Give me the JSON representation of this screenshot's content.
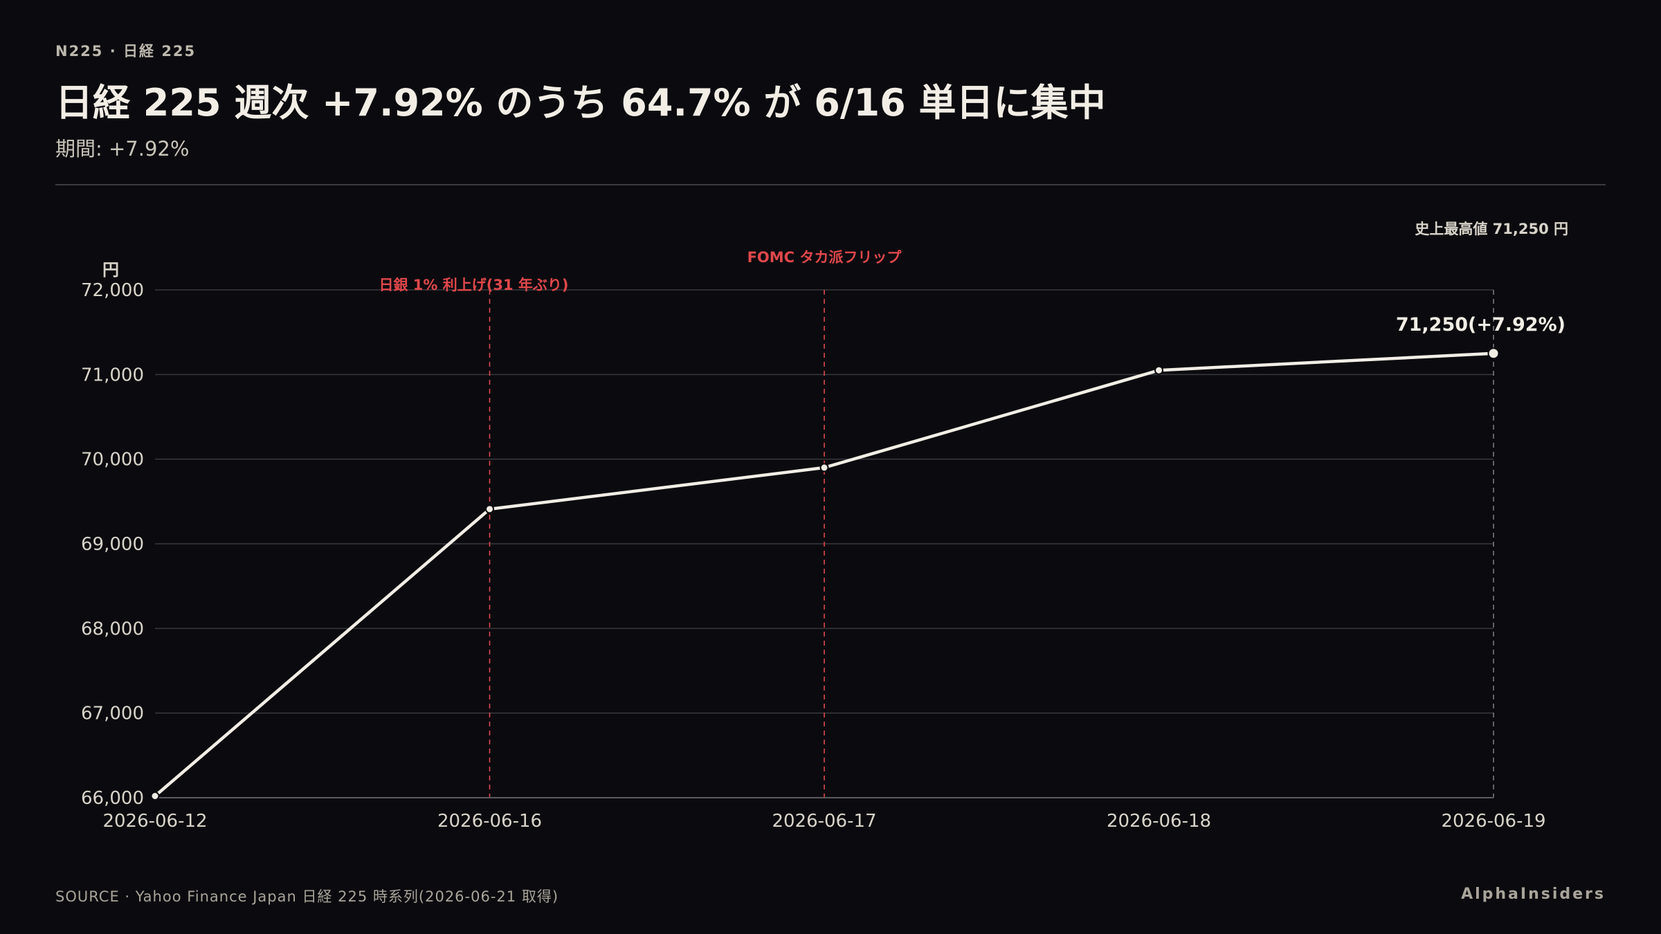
{
  "header": {
    "kicker": "N225 · 日経 225",
    "title": "日経 225 週次 +7.92% のうち 64.7% が 6/16 単日に集中",
    "subtitle": "期間: +7.92%"
  },
  "footer": {
    "source": "SOURCE · Yahoo Finance Japan 日経 225 時系列(2026-06-21 取得)",
    "brand": "AlphaInsiders"
  },
  "colors": {
    "background": "#0b0b0f",
    "line": "#f2eee6",
    "grid": "#3a3a3e",
    "event": "#e0484b",
    "axis_text": "#d8d3c9"
  },
  "chart_data": {
    "type": "line",
    "y_unit_label": "円",
    "ylim": [
      66000,
      72000
    ],
    "y_ticks": [
      66000,
      67000,
      68000,
      69000,
      70000,
      71000,
      72000
    ],
    "y_tick_labels": [
      "66,000",
      "67,000",
      "68,000",
      "69,000",
      "70,000",
      "71,000",
      "72,000"
    ],
    "x": [
      "2026-06-12",
      "2026-06-16",
      "2026-06-17",
      "2026-06-18",
      "2026-06-19"
    ],
    "x_tick_labels": [
      "2026-06-12",
      "2026-06-16",
      "2026-06-17",
      "2026-06-18",
      "2026-06-19"
    ],
    "values": [
      66020,
      69410,
      69900,
      71050,
      71250
    ],
    "grid": true,
    "events": [
      {
        "x": "2026-06-16",
        "label": "日銀 1% 利上げ(31 年ぶり)"
      },
      {
        "x": "2026-06-17",
        "label": "FOMC タカ派フリップ"
      }
    ],
    "end_marker": {
      "x": "2026-06-19",
      "label": "71,250(+7.92%)",
      "top_label": "史上最高値 71,250 円"
    }
  }
}
